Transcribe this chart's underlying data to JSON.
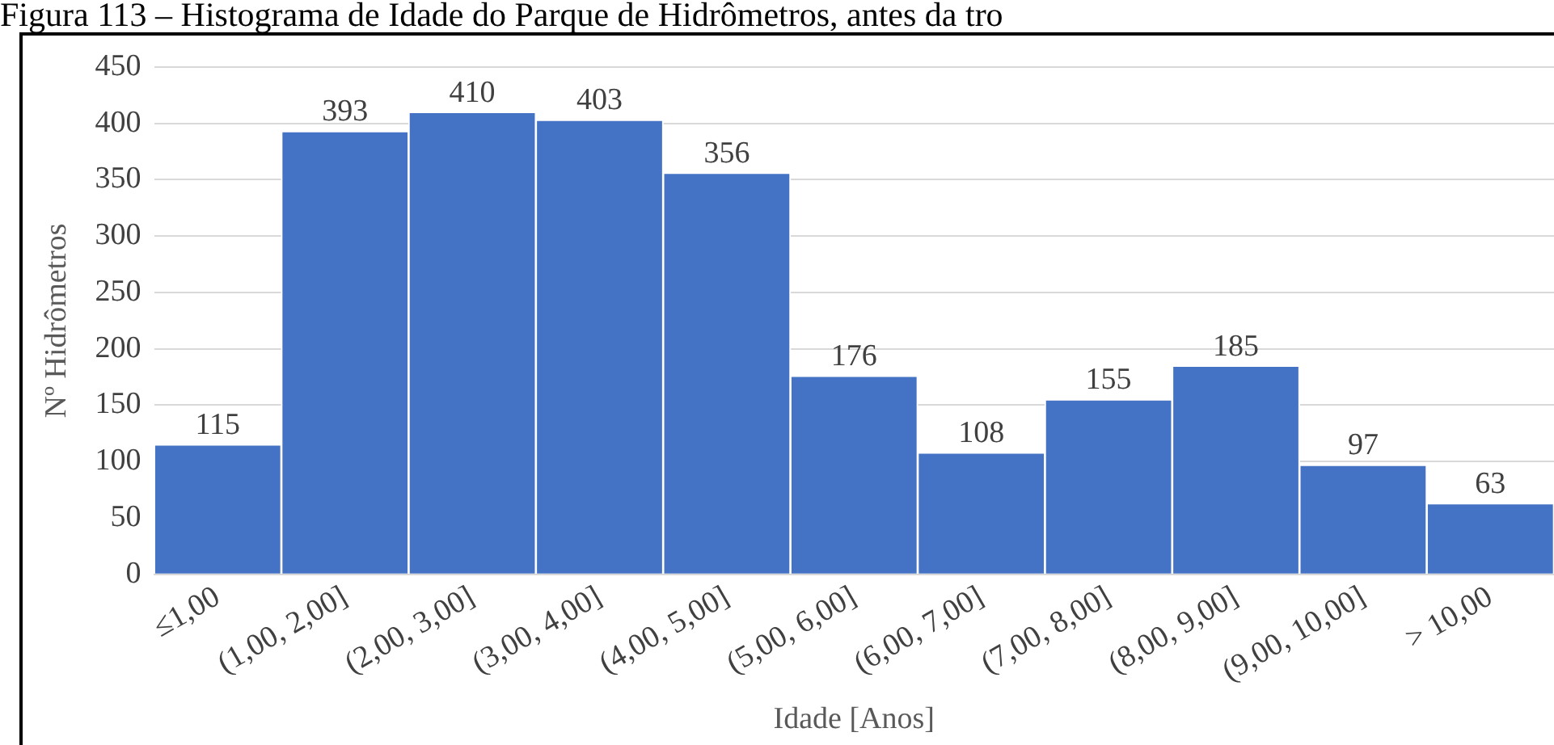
{
  "chart_data": {
    "type": "bar",
    "title": "Figura 113 – Histograma de Idade do Parque de Hidrômetros, antes da tro",
    "xlabel": "Idade [Anos]",
    "ylabel": "Nº Hidrômetros",
    "categories": [
      "≤1,00",
      "(1,00, 2,00]",
      "(2,00, 3,00]",
      "(3,00, 4,00]",
      "(4,00, 5,00]",
      "(5,00, 6,00]",
      "(6,00, 7,00]",
      "(7,00, 8,00]",
      "(8,00, 9,00]",
      "(9,00, 10,00]",
      "> 10,00"
    ],
    "values": [
      115,
      393,
      410,
      403,
      356,
      176,
      108,
      155,
      185,
      97,
      63
    ],
    "color": "#4472c4",
    "ylim": [
      0,
      450
    ],
    "yticks": [
      0,
      50,
      100,
      150,
      200,
      250,
      300,
      350,
      400,
      450
    ],
    "grid": "y",
    "data_labels": true,
    "legend": false
  }
}
